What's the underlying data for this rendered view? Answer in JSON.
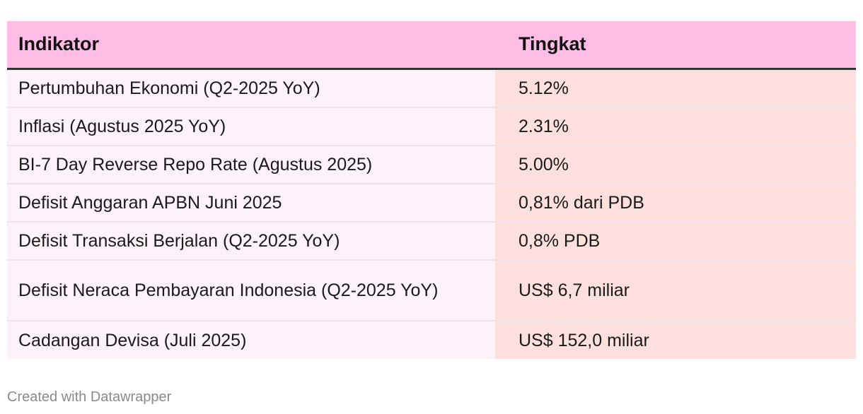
{
  "table": {
    "headers": [
      "Indikator",
      "Tingkat"
    ],
    "rows": [
      {
        "indicator": "Pertumbuhan Ekonomi (Q2-2025 YoY)",
        "value": "5.12%"
      },
      {
        "indicator": "Inflasi (Agustus 2025 YoY)",
        "value": "2.31%"
      },
      {
        "indicator": "BI-7 Day Reverse Repo Rate (Agustus 2025)",
        "value": "5.00%"
      },
      {
        "indicator": "Defisit Anggaran APBN Juni 2025",
        "value": "0,81% dari PDB"
      },
      {
        "indicator": "Defisit Transaksi Berjalan (Q2-2025 YoY)",
        "value": "0,8% PDB"
      },
      {
        "indicator": "Defisit Neraca Pembayaran Indonesia (Q2-2025 YoY)",
        "value": "US$ 6,7 miliar"
      },
      {
        "indicator": "Cadangan Devisa (Juli 2025)",
        "value": "US$ 152,0 miliar"
      }
    ]
  },
  "footer": {
    "credit": "Created with Datawrapper"
  },
  "colors": {
    "header_bg": "#ffbde6",
    "indicator_bg": "#fdf1fa",
    "value_bg": "#fde0de",
    "header_rule": "#333333"
  }
}
